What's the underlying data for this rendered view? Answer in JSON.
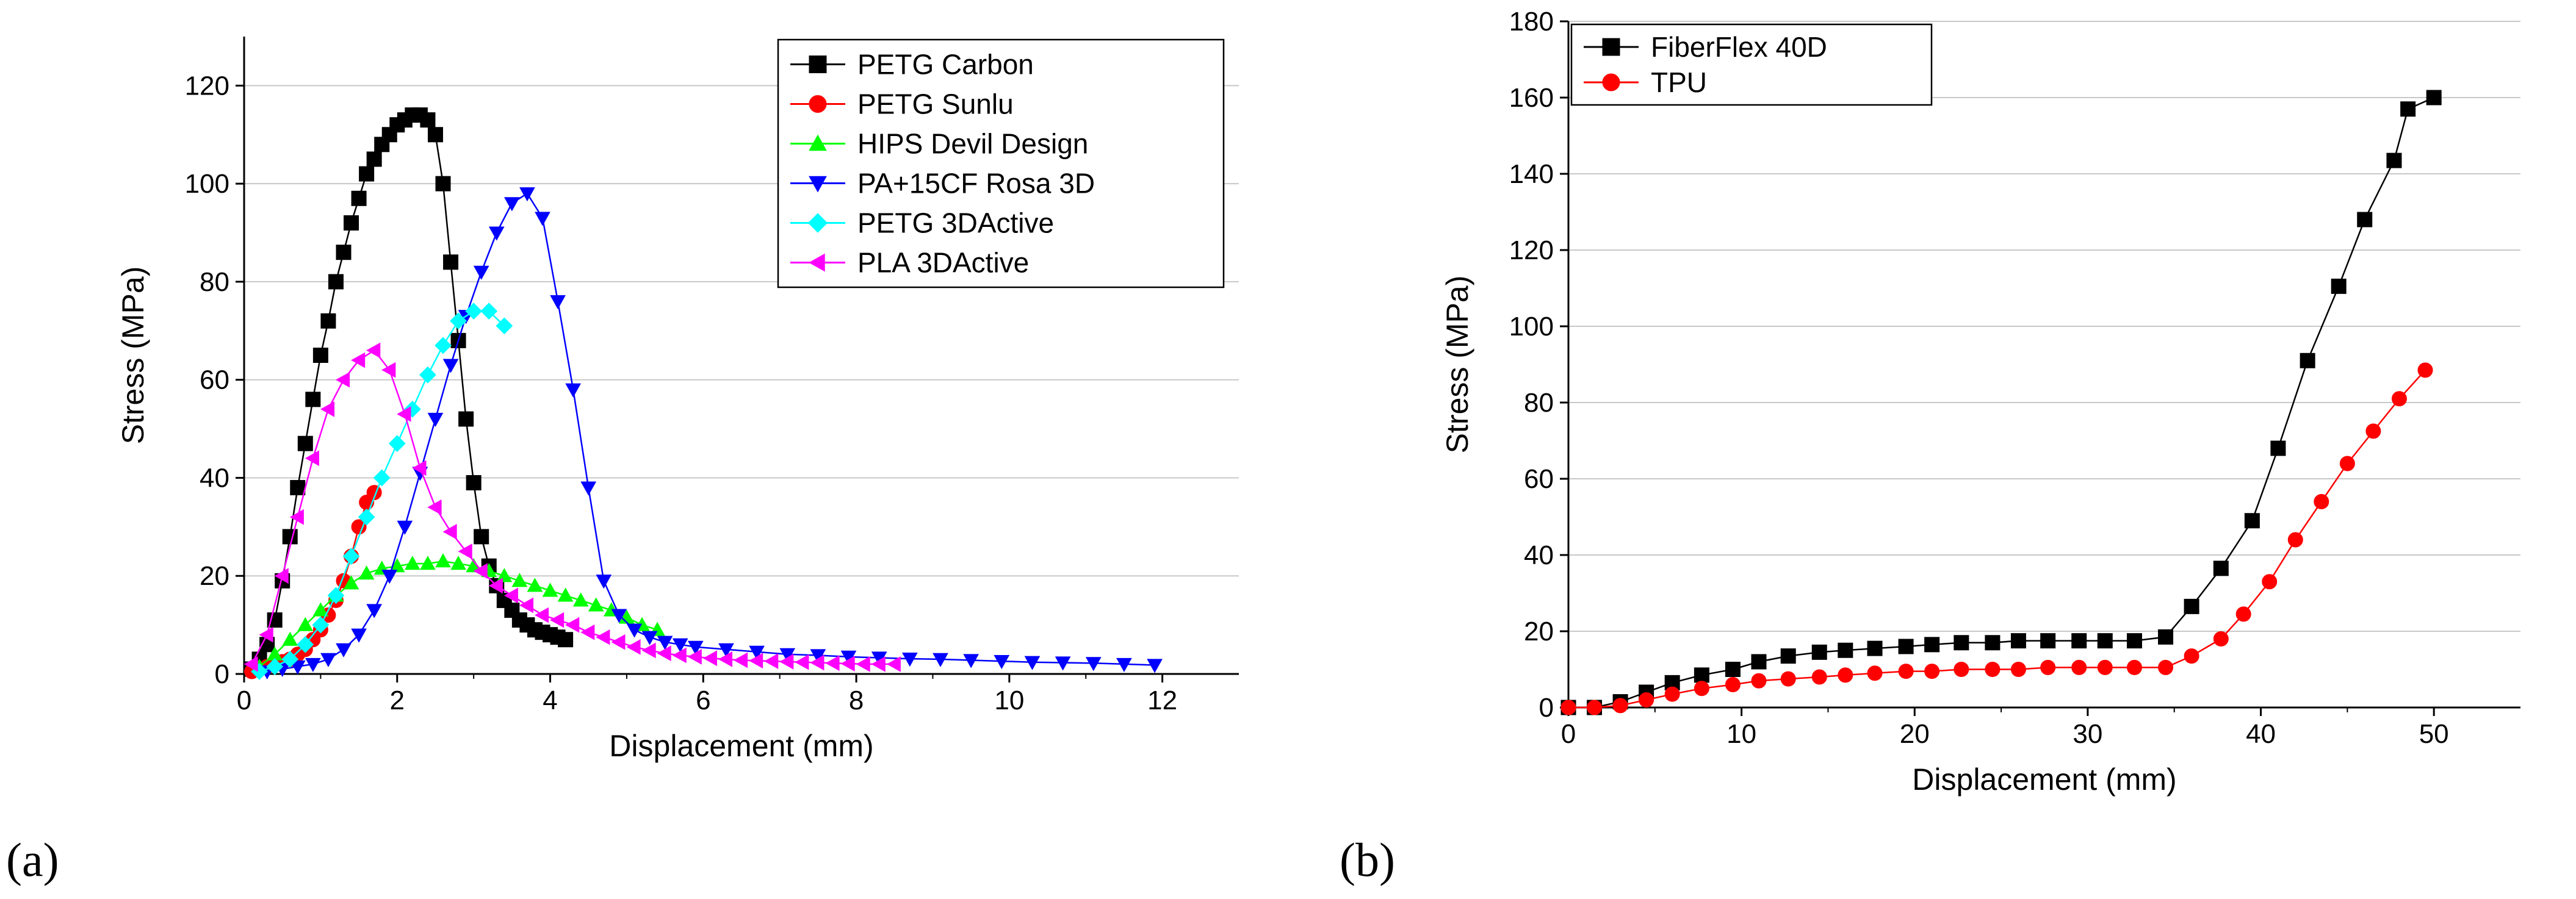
{
  "panel_labels": {
    "a": "(a)",
    "b": "(b)"
  },
  "colors": {
    "PETG Carbon": "#000000",
    "PETG Sunlu": "#ff0000",
    "HIPS Devil Design": "#00ff00",
    "PA+15CF Rosa 3D": "#0000ff",
    "PETG 3DActive": "#00ffff",
    "PLA 3DActive": "#ff00ff",
    "FiberFlex 40D": "#000000",
    "TPU": "#ff0000",
    "grid": "#c8c8c8"
  },
  "chart_data": [
    {
      "type": "line",
      "panel": "(a)",
      "xlabel": "Displacement (mm)",
      "ylabel": "Stress (MPa)",
      "xlim": [
        0,
        13
      ],
      "ylim": [
        0,
        130
      ],
      "xticks": [
        0,
        2,
        4,
        6,
        8,
        10,
        12
      ],
      "yticks": [
        0,
        20,
        40,
        60,
        80,
        100,
        120
      ],
      "grid": "horizontal",
      "legend_position": "top-right",
      "series": [
        {
          "name": "PETG Carbon",
          "marker": "square",
          "x": [
            0.1,
            0.2,
            0.3,
            0.4,
            0.5,
            0.6,
            0.7,
            0.8,
            0.9,
            1.0,
            1.1,
            1.2,
            1.3,
            1.4,
            1.5,
            1.6,
            1.7,
            1.8,
            1.9,
            2.0,
            2.1,
            2.2,
            2.3,
            2.4,
            2.5,
            2.6,
            2.7,
            2.8,
            2.9,
            3.0,
            3.1,
            3.2,
            3.3,
            3.4,
            3.5,
            3.6,
            3.7,
            3.8,
            3.9,
            4.0,
            4.1,
            4.2
          ],
          "y": [
            1,
            3,
            6,
            11,
            19,
            28,
            38,
            47,
            56,
            65,
            72,
            80,
            86,
            92,
            97,
            102,
            105,
            108,
            110,
            112,
            113,
            114,
            114,
            113,
            110,
            100,
            84,
            68,
            52,
            39,
            28,
            22,
            18,
            15,
            13,
            11,
            10,
            9,
            8.5,
            8,
            7.5,
            7
          ]
        },
        {
          "name": "PETG Sunlu",
          "marker": "circle",
          "x": [
            0.1,
            0.2,
            0.3,
            0.4,
            0.5,
            0.6,
            0.7,
            0.8,
            0.9,
            1.0,
            1.1,
            1.2,
            1.3,
            1.4,
            1.5,
            1.6,
            1.7
          ],
          "y": [
            0.5,
            1,
            1.5,
            2,
            2.5,
            3,
            4,
            5,
            7,
            9,
            12,
            15,
            19,
            24,
            30,
            35,
            37
          ]
        },
        {
          "name": "HIPS Devil Design",
          "marker": "triangle-up",
          "x": [
            0.2,
            0.4,
            0.6,
            0.8,
            1.0,
            1.2,
            1.4,
            1.6,
            1.8,
            2.0,
            2.2,
            2.4,
            2.6,
            2.8,
            3.0,
            3.2,
            3.4,
            3.6,
            3.8,
            4.0,
            4.2,
            4.4,
            4.6,
            4.8,
            5.0,
            5.2,
            5.4
          ],
          "y": [
            1.5,
            4,
            7,
            10,
            13,
            16,
            18.5,
            20.5,
            21.5,
            22,
            22.5,
            22.5,
            23,
            22.5,
            22,
            21,
            20,
            19,
            18,
            17,
            16,
            15,
            14,
            13,
            11.5,
            10,
            9
          ]
        },
        {
          "name": "PA+15CF Rosa 3D",
          "marker": "triangle-down",
          "x": [
            0.3,
            0.5,
            0.7,
            0.9,
            1.1,
            1.3,
            1.5,
            1.7,
            1.9,
            2.1,
            2.3,
            2.5,
            2.7,
            2.9,
            3.1,
            3.3,
            3.5,
            3.7,
            3.9,
            4.1,
            4.3,
            4.5,
            4.7,
            4.9,
            5.1,
            5.3,
            5.5,
            5.7,
            5.9,
            6.3,
            6.7,
            7.1,
            7.5,
            7.9,
            8.3,
            8.7,
            9.1,
            9.5,
            9.9,
            10.3,
            10.7,
            11.1,
            11.5,
            11.9
          ],
          "y": [
            0.5,
            1,
            1.5,
            2,
            3,
            5,
            8,
            13,
            20,
            30,
            41,
            52,
            63,
            73,
            82,
            90,
            96,
            98,
            93,
            76,
            58,
            38,
            19,
            12,
            9,
            7.5,
            6.5,
            6,
            5.5,
            5,
            4.5,
            4,
            3.8,
            3.5,
            3.3,
            3.1,
            3,
            2.8,
            2.6,
            2.4,
            2.3,
            2.2,
            2,
            1.8
          ]
        },
        {
          "name": "PETG 3DActive",
          "marker": "diamond",
          "x": [
            0.2,
            0.4,
            0.6,
            0.8,
            1.0,
            1.2,
            1.4,
            1.6,
            1.8,
            2.0,
            2.2,
            2.4,
            2.6,
            2.8,
            3.0,
            3.2,
            3.4
          ],
          "y": [
            0.5,
            1.5,
            3,
            6,
            10,
            16,
            24,
            32,
            40,
            47,
            54,
            61,
            67,
            72,
            74,
            74,
            71
          ]
        },
        {
          "name": "PLA 3DActive",
          "marker": "triangle-left",
          "x": [
            0.1,
            0.3,
            0.5,
            0.7,
            0.9,
            1.1,
            1.3,
            1.5,
            1.7,
            1.9,
            2.1,
            2.3,
            2.5,
            2.7,
            2.9,
            3.1,
            3.3,
            3.5,
            3.7,
            3.9,
            4.1,
            4.3,
            4.5,
            4.7,
            4.9,
            5.1,
            5.3,
            5.5,
            5.7,
            5.9,
            6.1,
            6.3,
            6.5,
            6.7,
            6.9,
            7.1,
            7.3,
            7.5,
            7.7,
            7.9,
            8.1,
            8.3,
            8.5
          ],
          "y": [
            2,
            8,
            20,
            32,
            44,
            54,
            60,
            64,
            66,
            62,
            53,
            42,
            34,
            29,
            25,
            21,
            18,
            16,
            14,
            12,
            11,
            10,
            8.5,
            7.5,
            6.5,
            5.5,
            4.8,
            4.2,
            3.8,
            3.5,
            3.2,
            3,
            2.8,
            2.7,
            2.6,
            2.5,
            2.4,
            2.3,
            2.2,
            2.1,
            2,
            2,
            2
          ]
        }
      ]
    },
    {
      "type": "line",
      "panel": "(b)",
      "xlabel": "Displacement (mm)",
      "ylabel": "Stress (MPa)",
      "xlim": [
        0,
        55
      ],
      "ylim": [
        0,
        180
      ],
      "xticks": [
        0,
        10,
        20,
        30,
        40,
        50
      ],
      "yticks": [
        0,
        20,
        40,
        60,
        80,
        100,
        120,
        140,
        160,
        180
      ],
      "grid": "horizontal",
      "legend_position": "top-left",
      "series": [
        {
          "name": "FiberFlex 40D",
          "marker": "square",
          "x": [
            0,
            1.5,
            3,
            4.5,
            6,
            7.7,
            9.5,
            11,
            12.7,
            14.5,
            16,
            17.7,
            19.5,
            21,
            22.7,
            24.5,
            26,
            27.7,
            29.5,
            31,
            32.7,
            34.5,
            36,
            37.7,
            39.5,
            41,
            42.7,
            44.5,
            46,
            47.7,
            48.5,
            50
          ],
          "y": [
            0,
            0,
            1.5,
            4,
            6.5,
            8.5,
            10,
            12,
            13.5,
            14.5,
            15,
            15.5,
            16,
            16.5,
            17,
            17,
            17.5,
            17.5,
            17.5,
            17.5,
            17.5,
            18.5,
            26.5,
            36.5,
            49,
            68,
            91,
            110.5,
            128,
            143.5,
            157,
            160
          ]
        },
        {
          "name": "TPU",
          "marker": "circle",
          "x": [
            0,
            1.5,
            3,
            4.5,
            6,
            7.7,
            9.5,
            11,
            12.7,
            14.5,
            16,
            17.7,
            19.5,
            21,
            22.7,
            24.5,
            26,
            27.7,
            29.5,
            31,
            32.7,
            34.5,
            36,
            37.7,
            39,
            40.5,
            42,
            43.5,
            45,
            46.5,
            48,
            49.5
          ],
          "y": [
            0,
            0,
            0.5,
            2,
            3.5,
            5,
            6,
            7,
            7.5,
            8,
            8.5,
            9,
            9.5,
            9.5,
            10,
            10,
            10,
            10.5,
            10.5,
            10.5,
            10.5,
            10.5,
            13.5,
            18,
            24.5,
            33,
            44,
            54,
            64,
            72.5,
            81,
            88.5
          ]
        }
      ]
    }
  ]
}
